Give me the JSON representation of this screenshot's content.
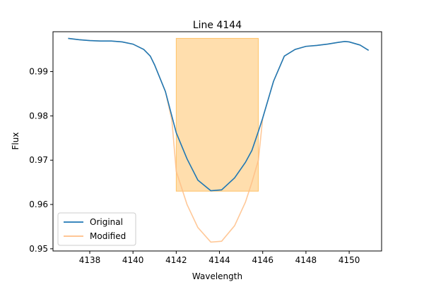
{
  "chart_data": {
    "type": "line",
    "title": "Line 4144",
    "xlabel": "Wavelength",
    "ylabel": "Flux",
    "xlim": [
      4136.3,
      4151.5
    ],
    "ylim": [
      0.9495,
      0.999
    ],
    "xticks": [
      4138,
      4140,
      4142,
      4144,
      4146,
      4148,
      4150
    ],
    "xtick_labels": [
      "4138",
      "4140",
      "4142",
      "4144",
      "4146",
      "4148",
      "4150"
    ],
    "yticks": [
      0.95,
      0.96,
      0.97,
      0.98,
      0.99
    ],
    "ytick_labels": [
      "0.95",
      "0.96",
      "0.97",
      "0.98",
      "0.99"
    ],
    "grid": false,
    "legend_position": "lower-left",
    "shaded_region": {
      "x": [
        4142.0,
        4145.8
      ],
      "y": [
        0.963,
        0.9975
      ],
      "color": "#ffbe5c"
    },
    "series": [
      {
        "name": "Original",
        "color": "#1f77b4",
        "x": [
          4137.0,
          4137.5,
          4138.0,
          4138.5,
          4139.0,
          4139.5,
          4140.0,
          4140.5,
          4140.8,
          4141.0,
          4141.5,
          4142.0,
          4142.5,
          4143.0,
          4143.6,
          4144.1,
          4144.7,
          4145.2,
          4145.5,
          4145.8,
          4146.0,
          4146.5,
          4147.0,
          4147.5,
          4148.0,
          4148.5,
          4149.0,
          4149.5,
          4149.8,
          4150.0,
          4150.5,
          4150.9
        ],
        "y": [
          0.9975,
          0.9972,
          0.997,
          0.9969,
          0.9969,
          0.9967,
          0.9962,
          0.995,
          0.9935,
          0.9915,
          0.9855,
          0.9762,
          0.9703,
          0.9655,
          0.9631,
          0.9633,
          0.966,
          0.9695,
          0.9722,
          0.9765,
          0.9795,
          0.9878,
          0.9935,
          0.995,
          0.9957,
          0.9959,
          0.9962,
          0.9966,
          0.9968,
          0.9967,
          0.996,
          0.9948
        ]
      },
      {
        "name": "Modified",
        "color": "#ffbe86",
        "x": [
          4137.0,
          4137.5,
          4138.0,
          4138.5,
          4139.0,
          4139.5,
          4140.0,
          4140.5,
          4140.8,
          4141.0,
          4141.5,
          4141.8,
          4142.0,
          4142.5,
          4143.0,
          4143.6,
          4144.1,
          4144.7,
          4145.2,
          4145.5,
          4145.8,
          4146.0,
          4146.5,
          4147.0,
          4147.5,
          4148.0,
          4148.5,
          4149.0,
          4149.5,
          4149.8,
          4150.0,
          4150.5,
          4150.9
        ],
        "y": [
          0.9975,
          0.9972,
          0.997,
          0.9969,
          0.9969,
          0.9967,
          0.9962,
          0.995,
          0.9935,
          0.9915,
          0.9855,
          0.979,
          0.9675,
          0.96,
          0.9548,
          0.9515,
          0.9517,
          0.9552,
          0.9605,
          0.965,
          0.97,
          0.9795,
          0.9878,
          0.9935,
          0.995,
          0.9957,
          0.9959,
          0.9962,
          0.9966,
          0.9968,
          0.9967,
          0.996,
          0.9948
        ]
      }
    ]
  }
}
